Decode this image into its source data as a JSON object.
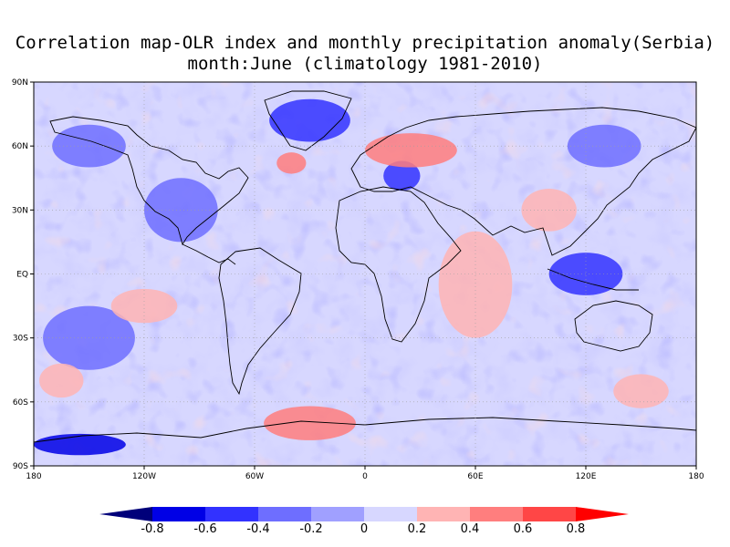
{
  "title": {
    "line1": "Correlation map-OLR index and monthly precipitation anomaly(Serbia)",
    "line2": "month:June (climatology 1981-2010)"
  },
  "axes": {
    "x_ticks": [
      "180",
      "120W",
      "60W",
      "0",
      "60E",
      "120E",
      "180"
    ],
    "y_ticks": [
      "90N",
      "60N",
      "30N",
      "EQ",
      "30S",
      "60S",
      "90S"
    ]
  },
  "colorbar": {
    "labels": [
      "-0.8",
      "-0.6",
      "-0.4",
      "-0.2",
      "0",
      "0.2",
      "0.4",
      "0.6",
      "0.8"
    ],
    "colors": [
      "#00007a",
      "#0000e6",
      "#3232ff",
      "#6e6eff",
      "#a0a0ff",
      "#d7d7ff",
      "#ffb4b4",
      "#ff7e7e",
      "#ff4646",
      "#ff0000"
    ]
  },
  "chart_data": {
    "type": "heatmap",
    "title": "Correlation map-OLR index and monthly precipitation anomaly(Serbia)",
    "subtitle": "month:June (climatology 1981-2010)",
    "x_range": [
      -180,
      180
    ],
    "y_range": [
      -90,
      90
    ],
    "grid": "dotted at 30 degree intervals",
    "levels": [
      -0.8,
      -0.6,
      -0.4,
      -0.2,
      0,
      0.2,
      0.4,
      0.6,
      0.8
    ],
    "regions": [
      {
        "lon": -30,
        "lat": 72,
        "lon_radius": 22,
        "lat_radius": 10,
        "value": -0.5
      },
      {
        "lon": 20,
        "lat": 46,
        "lon_radius": 10,
        "lat_radius": 7,
        "value": -0.6
      },
      {
        "lon": 25,
        "lat": 58,
        "lon_radius": 25,
        "lat_radius": 8,
        "value": 0.45
      },
      {
        "lon": -40,
        "lat": 52,
        "lon_radius": 8,
        "lat_radius": 5,
        "value": 0.4
      },
      {
        "lon": 60,
        "lat": -5,
        "lon_radius": 20,
        "lat_radius": 25,
        "value": 0.35
      },
      {
        "lon": -30,
        "lat": -70,
        "lon_radius": 25,
        "lat_radius": 8,
        "value": 0.4
      },
      {
        "lon": -155,
        "lat": -80,
        "lon_radius": 25,
        "lat_radius": 5,
        "value": -0.7
      },
      {
        "lon": 120,
        "lat": 0,
        "lon_radius": 20,
        "lat_radius": 10,
        "value": -0.45
      },
      {
        "lon": -100,
        "lat": 30,
        "lon_radius": 20,
        "lat_radius": 15,
        "value": -0.35
      },
      {
        "lon": -150,
        "lat": -30,
        "lon_radius": 25,
        "lat_radius": 15,
        "value": -0.35
      },
      {
        "lon": 150,
        "lat": -55,
        "lon_radius": 15,
        "lat_radius": 8,
        "value": 0.3
      },
      {
        "lon": -165,
        "lat": -50,
        "lon_radius": 12,
        "lat_radius": 8,
        "value": 0.3
      },
      {
        "lon": -120,
        "lat": -15,
        "lon_radius": 18,
        "lat_radius": 8,
        "value": 0.25
      },
      {
        "lon": 100,
        "lat": 30,
        "lon_radius": 15,
        "lat_radius": 10,
        "value": 0.25
      },
      {
        "lon": 130,
        "lat": 60,
        "lon_radius": 20,
        "lat_radius": 10,
        "value": -0.3
      },
      {
        "lon": -150,
        "lat": 60,
        "lon_radius": 20,
        "lat_radius": 10,
        "value": -0.3
      }
    ]
  }
}
